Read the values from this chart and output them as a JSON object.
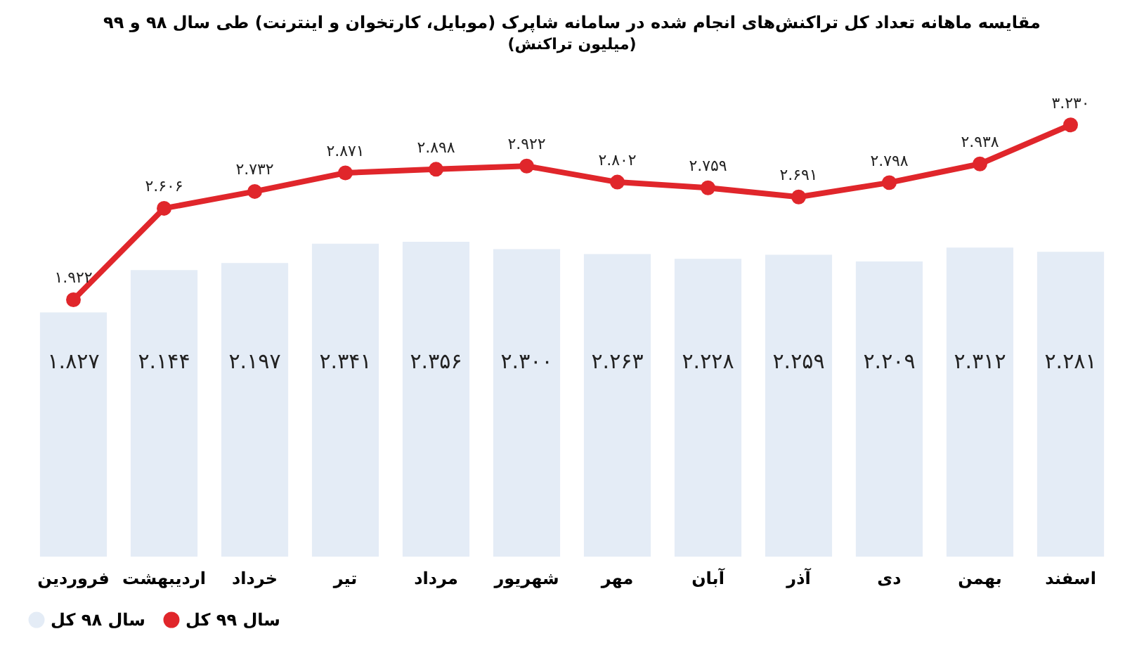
{
  "chart_data": {
    "type": "bar",
    "title": "مقایسه ماهانه تعداد کل تراکنش‌های انجام شده در سامانه شاپرک (موبایل، کارتخوان و اینترنت) طی سال ۹۸ و ۹۹",
    "subtitle": "(میلیون تراکنش)",
    "categories": [
      "فروردین",
      "اردیبهشت",
      "خرداد",
      "تیر",
      "مرداد",
      "شهریور",
      "مهر",
      "آبان",
      "آذر",
      "دی",
      "بهمن",
      "اسفند"
    ],
    "series": [
      {
        "name": "سال ۹۸ کل",
        "color": "#e4ecf6",
        "values": [
          1.827,
          2.144,
          2.197,
          2.341,
          2.356,
          2.3,
          2.263,
          2.228,
          2.259,
          2.209,
          2.312,
          2.281
        ],
        "value_labels": [
          "۱.۸۲۷",
          "۲.۱۴۴",
          "۲.۱۹۷",
          "۲.۳۴۱",
          "۲.۳۵۶",
          "۲.۳۰۰",
          "۲.۲۶۳",
          "۲.۲۲۸",
          "۲.۲۵۹",
          "۲.۲۰۹",
          "۲.۳۱۲",
          "۲.۲۸۱"
        ]
      },
      {
        "name": "سال ۹۹ کل",
        "type": "line",
        "color": "#e0262b",
        "values": [
          1.922,
          2.606,
          2.732,
          2.871,
          2.898,
          2.922,
          2.802,
          2.759,
          2.691,
          2.798,
          2.938,
          3.23
        ],
        "value_labels": [
          "۱.۹۲۲",
          "۲.۶۰۶",
          "۲.۷۳۲",
          "۲.۸۷۱",
          "۲.۸۹۸",
          "۲.۹۲۲",
          "۲.۸۰۲",
          "۲.۷۵۹",
          "۲.۶۹۱",
          "۲.۷۹۸",
          "۲.۹۳۸",
          "۳.۲۳۰"
        ]
      }
    ],
    "marker": "circle",
    "legend": "bottom",
    "grid": false,
    "tick_labels": "x"
  }
}
